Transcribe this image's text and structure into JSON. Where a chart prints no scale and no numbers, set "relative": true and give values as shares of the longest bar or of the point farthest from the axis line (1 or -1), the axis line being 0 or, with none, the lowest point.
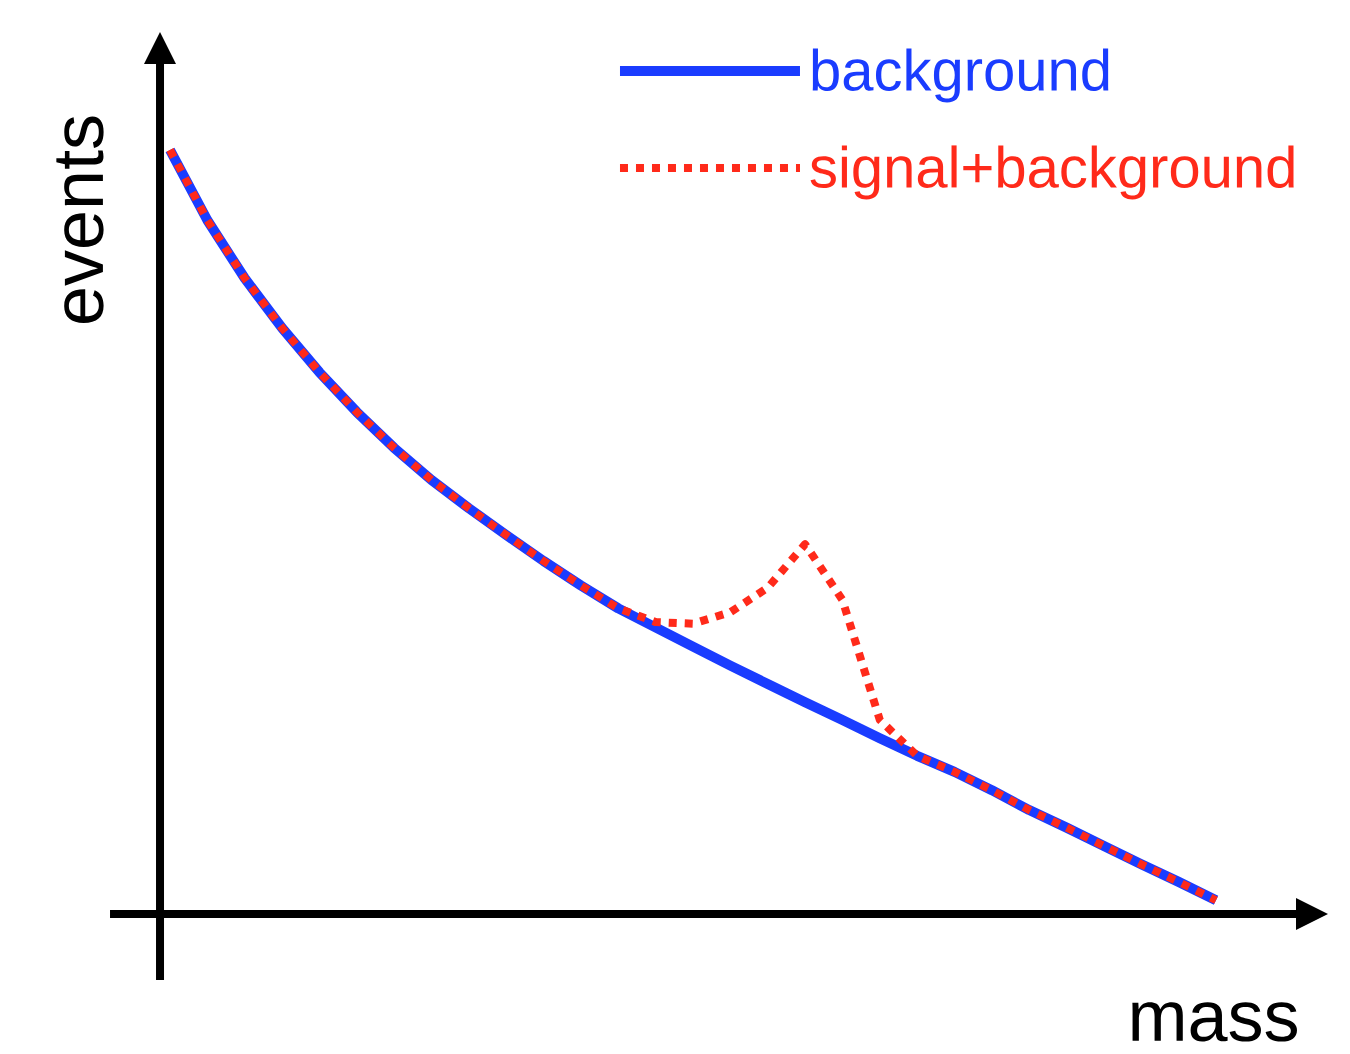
{
  "chart_data": {
    "type": "line",
    "relative": true,
    "xlabel": "mass",
    "ylabel": "events",
    "legend": "top right",
    "marker": "none",
    "categories": [
      null,
      null,
      null,
      null,
      null,
      null,
      null,
      null,
      null,
      null,
      null,
      null,
      null,
      null,
      null,
      null,
      null,
      null,
      null,
      null,
      null,
      null,
      null,
      null,
      null,
      null,
      null,
      null,
      null
    ],
    "series": [
      {
        "name": "background",
        "color": "#1a3cff",
        "line_style": "solid",
        "values": [
          1,
          0.908,
          0.832,
          0.767,
          0.709,
          0.657,
          0.61,
          0.568,
          0.531,
          0.496,
          0.462,
          0.43,
          0.4,
          0.375,
          0.35,
          0.325,
          0.301,
          0.277,
          0.254,
          0.23,
          0.207,
          0.186,
          0.162,
          0.136,
          0.113,
          0.089,
          0.065,
          0.042,
          0.018
        ]
      },
      {
        "name": "signal+background",
        "color": "#ff2a1a",
        "line_style": "dotted",
        "values": [
          1,
          0.908,
          0.832,
          0.767,
          0.709,
          0.657,
          0.61,
          0.568,
          0.531,
          0.496,
          0.462,
          0.43,
          0.4,
          0.382,
          0.38,
          0.395,
          0.427,
          0.484,
          0.411,
          0.254,
          0.207,
          0.186,
          0.162,
          0.136,
          0.113,
          0.089,
          0.065,
          0.042,
          0.018
        ]
      }
    ]
  }
}
